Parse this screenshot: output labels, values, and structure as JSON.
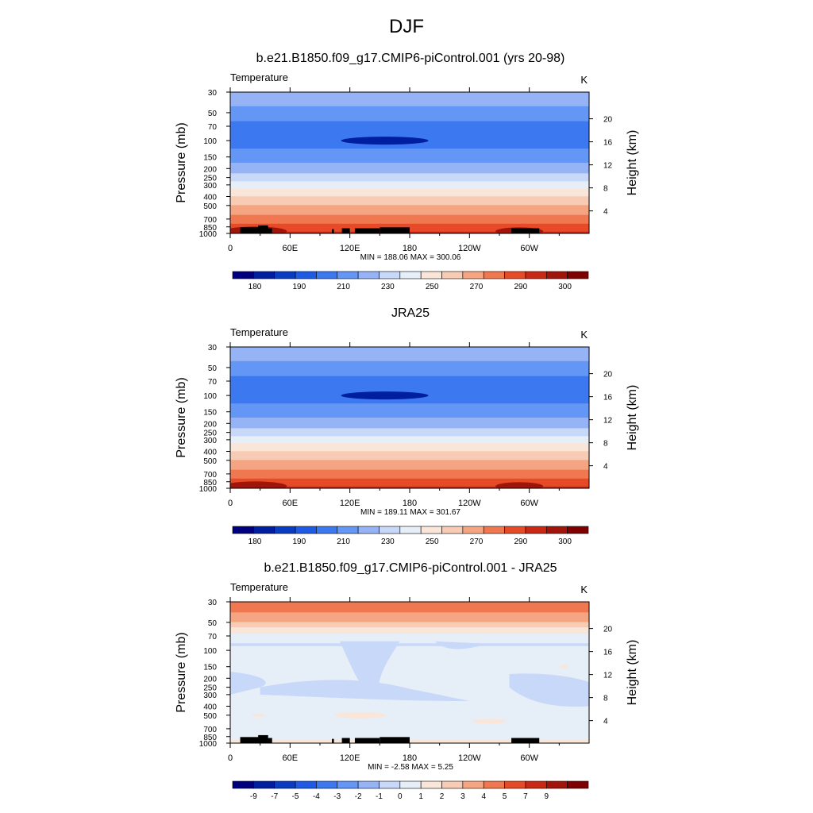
{
  "figure": {
    "title": "DJF"
  },
  "colors": {
    "temperature_levels": [
      "#00007f",
      "#001ea0",
      "#0a3cc2",
      "#1e5ae4",
      "#3c78f0",
      "#6496f5",
      "#96b4f5",
      "#c8d8f8",
      "#e6eef8",
      "#fae6d8",
      "#f8ccb4",
      "#f5a582",
      "#f07850",
      "#e64b28",
      "#c82814",
      "#a0140a",
      "#7f0000"
    ],
    "difference_levels": [
      "#00007f",
      "#001ea0",
      "#0a3cc2",
      "#1e5ae4",
      "#3c78f0",
      "#6496f5",
      "#96b4f5",
      "#c8d8f8",
      "#e6eef8",
      "#fae6d8",
      "#f8ccb4",
      "#f5a582",
      "#f07850",
      "#e64b28",
      "#c82814",
      "#a0140a",
      "#7f0000"
    ],
    "topography": "#000000"
  },
  "chart_data": [
    {
      "type": "heatmap",
      "title": "b.e21.B1850.f09_g17.CMIP6-piControl.001 (yrs 20-98)",
      "left_label": "Temperature",
      "right_label": "K",
      "ylabel": "Pressure (mb)",
      "y2label": "Height (km)",
      "x_ticks": [
        "0",
        "60E",
        "120E",
        "180",
        "120W",
        "60W"
      ],
      "y_ticks": [
        "30",
        "50",
        "70",
        "100",
        "150",
        "200",
        "250",
        "300",
        "400",
        "500",
        "700",
        "850",
        "1000"
      ],
      "y2_ticks": [
        "20",
        "16",
        "12",
        "8",
        "4"
      ],
      "stats": "MIN = 188.06  MAX = 300.06",
      "colorbar_labels": [
        "180",
        "190",
        "210",
        "230",
        "250",
        "270",
        "290",
        "300"
      ],
      "field": "temperature",
      "min": 188.06,
      "max": 300.06,
      "profile": [
        [
          30,
          220
        ],
        [
          50,
          205
        ],
        [
          70,
          197
        ],
        [
          100,
          195
        ],
        [
          150,
          205
        ],
        [
          200,
          215
        ],
        [
          250,
          225
        ],
        [
          300,
          235
        ],
        [
          400,
          250
        ],
        [
          500,
          260
        ],
        [
          700,
          275
        ],
        [
          850,
          283
        ],
        [
          1000,
          292
        ]
      ],
      "topography": true
    },
    {
      "type": "heatmap",
      "title": "JRA25",
      "left_label": "Temperature",
      "right_label": "K",
      "ylabel": "Pressure (mb)",
      "y2label": "Height (km)",
      "x_ticks": [
        "0",
        "60E",
        "120E",
        "180",
        "120W",
        "60W"
      ],
      "y_ticks": [
        "30",
        "50",
        "70",
        "100",
        "150",
        "200",
        "250",
        "300",
        "400",
        "500",
        "700",
        "850",
        "1000"
      ],
      "y2_ticks": [
        "20",
        "16",
        "12",
        "8",
        "4"
      ],
      "stats": "MIN = 189.11  MAX = 301.67",
      "colorbar_labels": [
        "180",
        "190",
        "210",
        "230",
        "250",
        "270",
        "290",
        "300"
      ],
      "field": "temperature",
      "min": 189.11,
      "max": 301.67,
      "profile": [
        [
          30,
          220
        ],
        [
          50,
          205
        ],
        [
          70,
          197
        ],
        [
          100,
          195
        ],
        [
          150,
          205
        ],
        [
          200,
          215
        ],
        [
          250,
          225
        ],
        [
          300,
          235
        ],
        [
          400,
          250
        ],
        [
          500,
          260
        ],
        [
          700,
          275
        ],
        [
          850,
          283
        ],
        [
          1000,
          292
        ]
      ],
      "topography": false
    },
    {
      "type": "heatmap",
      "title": "b.e21.B1850.f09_g17.CMIP6-piControl.001 - JRA25",
      "left_label": "Temperature",
      "right_label": "K",
      "ylabel": "Pressure (mb)",
      "y2label": "Height (km)",
      "x_ticks": [
        "0",
        "60E",
        "120E",
        "180",
        "120W",
        "60W"
      ],
      "y_ticks": [
        "30",
        "50",
        "70",
        "100",
        "150",
        "200",
        "250",
        "300",
        "400",
        "500",
        "700",
        "850",
        "1000"
      ],
      "y2_ticks": [
        "20",
        "16",
        "12",
        "8",
        "4"
      ],
      "stats": "MIN =  -2.58  MAX =   5.25",
      "colorbar_labels": [
        "-9",
        "-7",
        "-5",
        "-4",
        "-3",
        "-2",
        "-1",
        "0",
        "1",
        "2",
        "3",
        "4",
        "5",
        "7",
        "9"
      ],
      "field": "difference",
      "min": -2.58,
      "max": 5.25,
      "profile": [
        [
          30,
          5
        ],
        [
          50,
          3
        ],
        [
          70,
          0.5
        ],
        [
          100,
          -0.5
        ],
        [
          150,
          -0.5
        ],
        [
          200,
          -1
        ],
        [
          300,
          -1
        ],
        [
          400,
          -0.5
        ],
        [
          500,
          -0.3
        ],
        [
          700,
          -0.2
        ],
        [
          850,
          -0.2
        ],
        [
          1000,
          0.3
        ]
      ],
      "topography": true
    }
  ]
}
